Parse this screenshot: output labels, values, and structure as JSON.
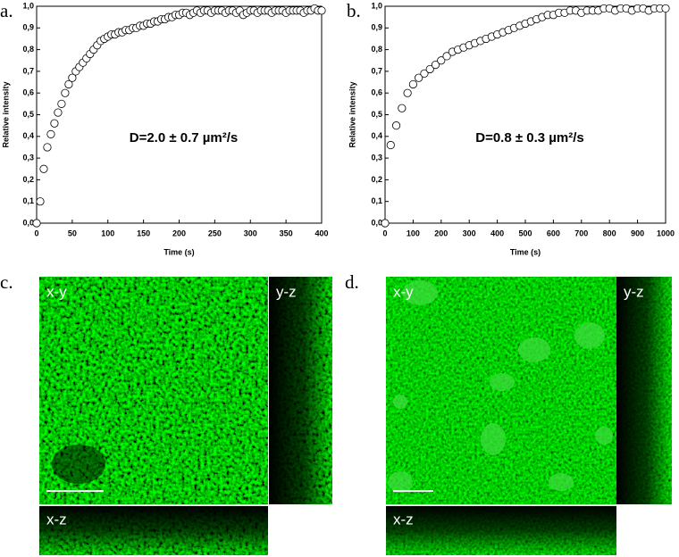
{
  "chart_data": [
    {
      "type": "scatter",
      "panel_label": "a.",
      "xlabel": "Time (s)",
      "ylabel": "Relative intensity",
      "annotation": "D=2.0 ± 0.7 µm²/s",
      "marker_color": "#000000",
      "x": [
        0,
        5,
        10,
        15,
        20,
        25,
        30,
        35,
        40,
        45,
        50,
        55,
        60,
        65,
        70,
        75,
        80,
        85,
        90,
        95,
        100,
        105,
        110,
        115,
        120,
        125,
        130,
        135,
        140,
        145,
        150,
        155,
        160,
        165,
        170,
        175,
        180,
        185,
        190,
        195,
        200,
        205,
        210,
        215,
        220,
        225,
        230,
        235,
        240,
        245,
        250,
        255,
        260,
        265,
        270,
        275,
        280,
        285,
        290,
        295,
        300,
        305,
        310,
        315,
        320,
        325,
        330,
        335,
        340,
        345,
        350,
        355,
        360,
        365,
        370,
        375,
        380,
        385,
        390,
        395,
        400
      ],
      "values": [
        0,
        0.1,
        0.25,
        0.35,
        0.41,
        0.46,
        0.51,
        0.55,
        0.6,
        0.64,
        0.67,
        0.7,
        0.72,
        0.74,
        0.76,
        0.78,
        0.8,
        0.82,
        0.84,
        0.85,
        0.86,
        0.87,
        0.87,
        0.88,
        0.88,
        0.89,
        0.89,
        0.9,
        0.9,
        0.91,
        0.91,
        0.92,
        0.92,
        0.93,
        0.93,
        0.94,
        0.94,
        0.95,
        0.95,
        0.96,
        0.96,
        0.97,
        0.97,
        0.96,
        0.97,
        0.98,
        0.97,
        0.98,
        0.98,
        0.97,
        0.98,
        0.98,
        0.98,
        0.97,
        0.98,
        0.98,
        0.97,
        0.98,
        0.96,
        0.97,
        0.98,
        0.98,
        0.97,
        0.98,
        0.98,
        0.98,
        0.97,
        0.98,
        0.98,
        0.98,
        0.97,
        0.98,
        0.98,
        0.98,
        0.98,
        0.97,
        0.98,
        0.98,
        0.99,
        0.98,
        0.98
      ],
      "xlim": [
        0,
        400
      ],
      "xticks": [
        0,
        50,
        100,
        150,
        200,
        250,
        300,
        350,
        400
      ],
      "ylim": [
        0,
        1
      ],
      "yticks": [
        {
          "value": 0,
          "label": "0,0"
        },
        {
          "value": 0.1,
          "label": "0,1"
        },
        {
          "value": 0.2,
          "label": "0,2"
        },
        {
          "value": 0.3,
          "label": "0,3"
        },
        {
          "value": 0.4,
          "label": "0,4"
        },
        {
          "value": 0.5,
          "label": "0,5"
        },
        {
          "value": 0.6,
          "label": "0,6"
        },
        {
          "value": 0.7,
          "label": "0,7"
        },
        {
          "value": 0.8,
          "label": "0,8"
        },
        {
          "value": 0.9,
          "label": "0,9"
        },
        {
          "value": 1,
          "label": "1,0"
        }
      ]
    },
    {
      "type": "scatter",
      "panel_label": "b.",
      "xlabel": "Time (s)",
      "ylabel": "Relative intensity",
      "annotation": "D=0.8 ± 0.3 µm²/s",
      "marker_color": "#000000",
      "x": [
        0,
        20,
        40,
        60,
        80,
        100,
        120,
        140,
        160,
        180,
        200,
        220,
        240,
        260,
        280,
        300,
        320,
        340,
        360,
        380,
        400,
        420,
        440,
        460,
        480,
        500,
        520,
        540,
        560,
        580,
        600,
        620,
        640,
        660,
        680,
        700,
        720,
        740,
        760,
        780,
        800,
        820,
        840,
        860,
        880,
        900,
        920,
        940,
        960,
        980,
        1000
      ],
      "values": [
        0,
        0.36,
        0.45,
        0.53,
        0.6,
        0.64,
        0.67,
        0.69,
        0.71,
        0.73,
        0.75,
        0.77,
        0.79,
        0.8,
        0.81,
        0.82,
        0.83,
        0.84,
        0.85,
        0.86,
        0.87,
        0.88,
        0.89,
        0.9,
        0.91,
        0.92,
        0.93,
        0.94,
        0.95,
        0.96,
        0.96,
        0.97,
        0.97,
        0.98,
        0.98,
        0.97,
        0.98,
        0.98,
        0.98,
        0.99,
        0.99,
        0.98,
        0.99,
        0.99,
        0.98,
        0.99,
        0.99,
        0.98,
        0.99,
        0.99,
        0.99
      ],
      "xlim": [
        0,
        1000
      ],
      "xticks": [
        0,
        100,
        200,
        300,
        400,
        500,
        600,
        700,
        800,
        900,
        1000
      ],
      "ylim": [
        0,
        1
      ],
      "yticks": [
        {
          "value": 0,
          "label": "0,0"
        },
        {
          "value": 0.1,
          "label": "0,1"
        },
        {
          "value": 0.2,
          "label": "0,2"
        },
        {
          "value": 0.3,
          "label": "0,3"
        },
        {
          "value": 0.4,
          "label": "0,4"
        },
        {
          "value": 0.5,
          "label": "0,5"
        },
        {
          "value": 0.6,
          "label": "0,6"
        },
        {
          "value": 0.7,
          "label": "0,7"
        },
        {
          "value": 0.8,
          "label": "0,8"
        },
        {
          "value": 0.9,
          "label": "0,9"
        },
        {
          "value": 1,
          "label": "1,0"
        }
      ]
    }
  ],
  "images": [
    {
      "panel_label": "c.",
      "xy": "x-y",
      "yz": "y-z",
      "xz": "x-z"
    },
    {
      "panel_label": "d.",
      "xy": "x-y",
      "yz": "y-z",
      "xz": "x-z"
    }
  ]
}
